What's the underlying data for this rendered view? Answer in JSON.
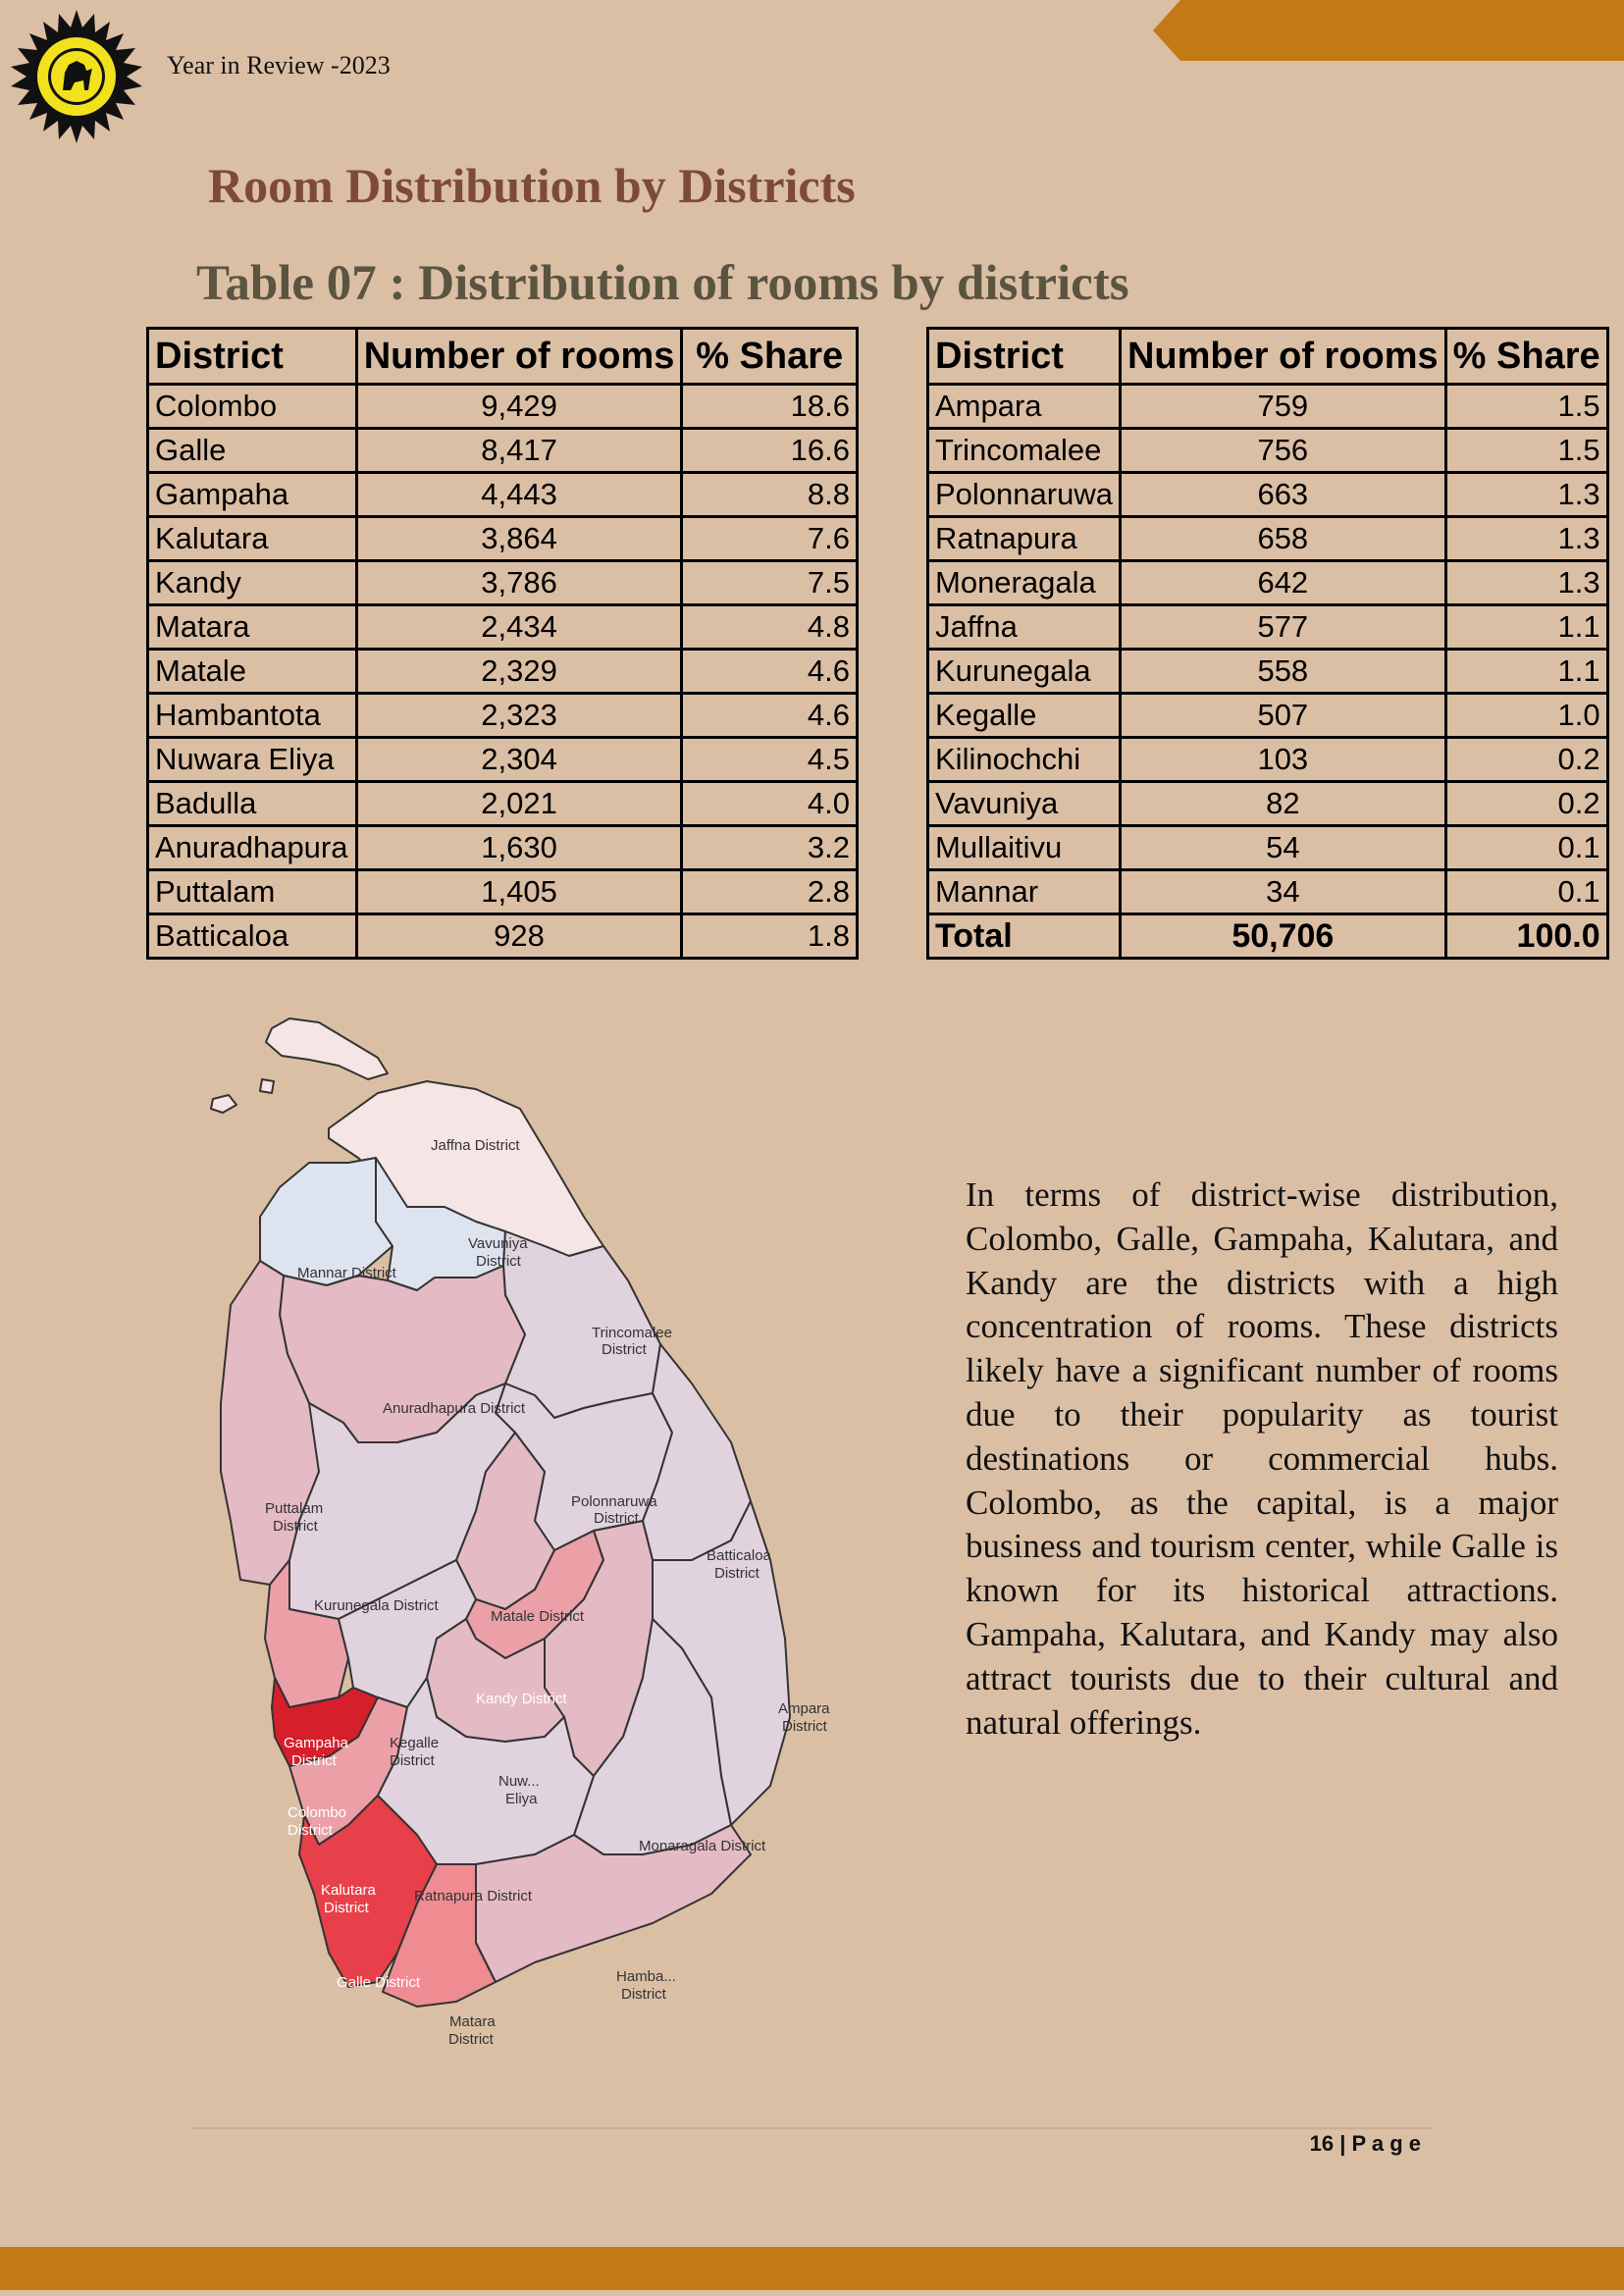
{
  "header": {
    "report_title": "Year in Review -2023"
  },
  "section_title": "Room Distribution by Districts",
  "table_title": "Table 07 : Distribution of rooms by districts",
  "table": {
    "columns": [
      "District",
      "Number of rooms",
      "% Share"
    ],
    "left_rows": [
      [
        "Colombo",
        "9,429",
        "18.6"
      ],
      [
        "Galle",
        "8,417",
        "16.6"
      ],
      [
        "Gampaha",
        "4,443",
        "8.8"
      ],
      [
        "Kalutara",
        "3,864",
        "7.6"
      ],
      [
        "Kandy",
        "3,786",
        "7.5"
      ],
      [
        "Matara",
        "2,434",
        "4.8"
      ],
      [
        "Matale",
        "2,329",
        "4.6"
      ],
      [
        "Hambantota",
        "2,323",
        "4.6"
      ],
      [
        "Nuwara Eliya",
        "2,304",
        "4.5"
      ],
      [
        "Badulla",
        "2,021",
        "4.0"
      ],
      [
        "Anuradhapura",
        "1,630",
        "3.2"
      ],
      [
        "Puttalam",
        "1,405",
        "2.8"
      ],
      [
        "Batticaloa",
        "928",
        "1.8"
      ]
    ],
    "right_rows": [
      [
        "Ampara",
        "759",
        "1.5"
      ],
      [
        "Trincomalee",
        "756",
        "1.5"
      ],
      [
        "Polonnaruwa",
        "663",
        "1.3"
      ],
      [
        "Ratnapura",
        "658",
        "1.3"
      ],
      [
        "Moneragala",
        "642",
        "1.3"
      ],
      [
        "Jaffna",
        "577",
        "1.1"
      ],
      [
        "Kurunegala",
        "558",
        "1.1"
      ],
      [
        "Kegalle",
        "507",
        "1.0"
      ],
      [
        "Kilinochchi",
        "103",
        "0.2"
      ],
      [
        "Vavuniya",
        "82",
        "0.2"
      ],
      [
        "Mullaitivu",
        "54",
        "0.1"
      ],
      [
        "Mannar",
        "34",
        "0.1"
      ]
    ],
    "total_row": [
      "Total",
      "50,706",
      "100.0"
    ]
  },
  "map": {
    "labels": {
      "jaffna": "Jaffna District",
      "vavuniya_1": "Vavuniya",
      "vavuniya_2": "District",
      "mannar": "Mannar District",
      "trincomalee_1": "Trincomalee",
      "trincomalee_2": "District",
      "anuradhapura": "Anuradhapura District",
      "puttalam_1": "Puttalam",
      "puttalam_2": "District",
      "polonnaruwa_1": "Polonnaruwa",
      "polonnaruwa_2": "District",
      "batticaloa_1": "Batticaloa",
      "batticaloa_2": "District",
      "kurunegala": "Kurunegala District",
      "matale": "Matale District",
      "kandy": "Kandy District",
      "ampara_1": "Ampara",
      "ampara_2": "District",
      "gampaha_1": "Gampaha",
      "gampaha_2": "District",
      "kegalle_1": "Kegalle",
      "kegalle_2": "District",
      "nuwara_1": "Nuw...",
      "nuwara_2": "Eliya",
      "colombo_1": "Colombo",
      "colombo_2": "District",
      "monaragala": "Monaragala District",
      "kalutara_1": "Kalutara",
      "kalutara_2": "District",
      "ratnapura": "Ratnapura District",
      "galle": "Galle District",
      "hambantota_1": "Hamba...",
      "hambantota_2": "District",
      "matara_1": "Matara",
      "matara_2": "District"
    },
    "colors": {
      "very_low": "#f6e5e5",
      "low_blue": "#dde3ef",
      "lavender": "#e0d3de",
      "light_pink": "#e4bac4",
      "mid_pink": "#eba0a7",
      "salmon": "#ef8c92",
      "red_high": "#e8404a",
      "red_max": "#d71f2c"
    }
  },
  "description": "In terms of district-wise distribution, Colombo, Galle, Gampaha, Kalutara, and Kandy are the districts with a high concentration of rooms. These districts likely have a significant number of rooms due to their popularity as tourist destinations or commercial hubs. Colombo, as the capital, is a major business and tourism center, while Galle is known for its historical attractions. Gampaha, Kalutara, and Kandy may also attract tourists due to their cultural and natural offerings.",
  "footer": {
    "page_label": "16 | P a g e"
  },
  "colors": {
    "background": "#dbbfa5",
    "band": "#c47a14",
    "section_title": "#7d4a3a",
    "table_title": "#5a5441"
  }
}
